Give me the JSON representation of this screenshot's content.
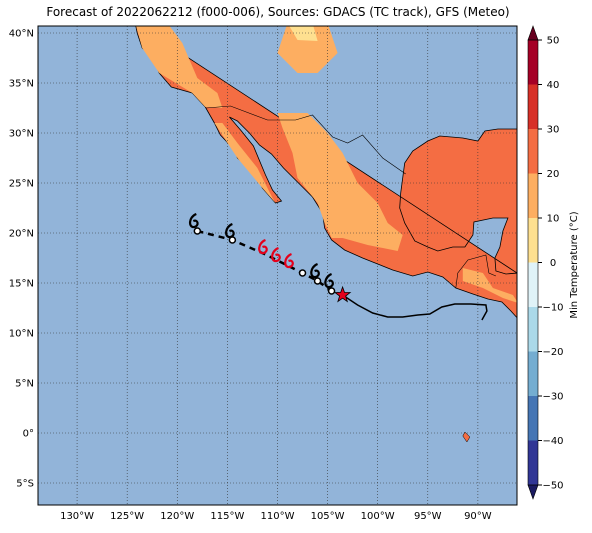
{
  "title": "Forecast of 2022062212 (f000-006), Sources: GDACS (TC track), GFS (Meteo)",
  "lat_labels": [
    "40°N",
    "35°N",
    "30°N",
    "25°N",
    "20°N",
    "15°N",
    "10°N",
    "5°N",
    "0°",
    "5°S"
  ],
  "lon_labels": [
    "130°W",
    "125°W",
    "120°W",
    "115°W",
    "110°W",
    "105°W",
    "100°W",
    "95°W",
    "90°W"
  ],
  "colorbar": {
    "label": "Min Temperature (°C)",
    "ticks": [
      "50",
      "40",
      "30",
      "20",
      "10",
      "0",
      "−10",
      "−20",
      "−30",
      "−40",
      "−50"
    ]
  }
}
